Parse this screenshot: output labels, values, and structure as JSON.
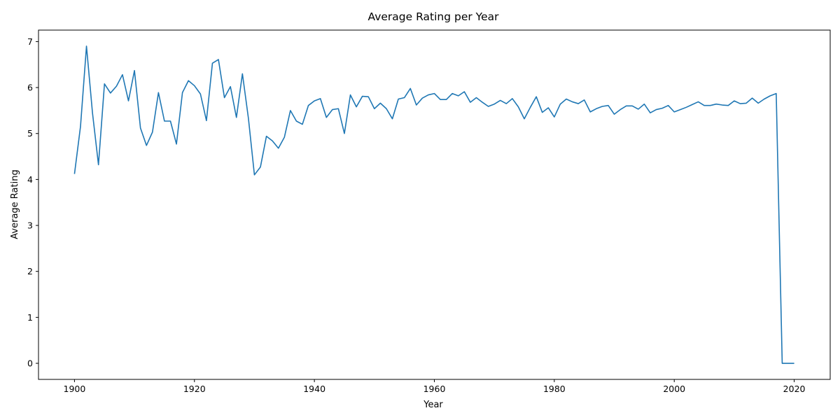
{
  "chart_data": {
    "type": "line",
    "title": "Average Rating per Year",
    "xlabel": "Year",
    "ylabel": "Average Rating",
    "xlim": [
      1894,
      2026
    ],
    "ylim": [
      -0.35,
      7.25
    ],
    "x_ticks": [
      1900,
      1920,
      1940,
      1960,
      1980,
      2000,
      2020
    ],
    "y_ticks": [
      0,
      1,
      2,
      3,
      4,
      5,
      6,
      7
    ],
    "grid": false,
    "legend": "none",
    "line_color": "#1f77b4",
    "series": [
      {
        "x": [
          1900,
          1901,
          1902,
          1903,
          1904,
          1905,
          1906,
          1907,
          1908,
          1909,
          1910,
          1911,
          1912,
          1913,
          1914,
          1915,
          1916,
          1917,
          1918,
          1919,
          1920,
          1921,
          1922,
          1923,
          1924,
          1925,
          1926,
          1927,
          1928,
          1929,
          1930,
          1931,
          1932,
          1933,
          1934,
          1935,
          1936,
          1937,
          1938,
          1939,
          1940,
          1941,
          1942,
          1943,
          1944,
          1945,
          1946,
          1947,
          1948,
          1949,
          1950,
          1951,
          1952,
          1953,
          1954,
          1955,
          1956,
          1957,
          1958,
          1959,
          1960,
          1961,
          1962,
          1963,
          1964,
          1965,
          1966,
          1967,
          1968,
          1969,
          1970,
          1971,
          1972,
          1973,
          1974,
          1975,
          1976,
          1977,
          1978,
          1979,
          1980,
          1981,
          1982,
          1983,
          1984,
          1985,
          1986,
          1987,
          1988,
          1989,
          1990,
          1991,
          1992,
          1993,
          1994,
          1995,
          1996,
          1997,
          1998,
          1999,
          2000,
          2001,
          2002,
          2003,
          2004,
          2005,
          2006,
          2007,
          2008,
          2009,
          2010,
          2011,
          2012,
          2013,
          2014,
          2015,
          2016,
          2017,
          2018,
          2019,
          2020
        ],
        "values": [
          4.12,
          5.15,
          6.9,
          5.45,
          4.32,
          6.08,
          5.88,
          6.03,
          6.28,
          5.71,
          6.37,
          5.12,
          4.74,
          5.03,
          5.89,
          5.27,
          5.27,
          4.77,
          5.89,
          6.15,
          6.04,
          5.86,
          5.28,
          6.53,
          6.61,
          5.78,
          6.02,
          5.35,
          6.3,
          5.33,
          4.1,
          4.27,
          4.94,
          4.84,
          4.68,
          4.92,
          5.5,
          5.27,
          5.2,
          5.61,
          5.71,
          5.76,
          5.35,
          5.52,
          5.54,
          5.0,
          5.84,
          5.58,
          5.81,
          5.8,
          5.54,
          5.66,
          5.54,
          5.32,
          5.75,
          5.78,
          5.98,
          5.62,
          5.77,
          5.84,
          5.87,
          5.74,
          5.74,
          5.87,
          5.82,
          5.91,
          5.68,
          5.78,
          5.68,
          5.59,
          5.64,
          5.72,
          5.65,
          5.76,
          5.58,
          5.32,
          5.57,
          5.8,
          5.46,
          5.56,
          5.36,
          5.64,
          5.75,
          5.69,
          5.65,
          5.73,
          5.47,
          5.54,
          5.59,
          5.61,
          5.42,
          5.52,
          5.6,
          5.6,
          5.53,
          5.64,
          5.45,
          5.52,
          5.55,
          5.61,
          5.47,
          5.52,
          5.57,
          5.63,
          5.69,
          5.61,
          5.61,
          5.64,
          5.62,
          5.61,
          5.71,
          5.65,
          5.66,
          5.77,
          5.66,
          5.75,
          5.82,
          5.87,
          0.0,
          0.0,
          0.0
        ]
      }
    ]
  }
}
